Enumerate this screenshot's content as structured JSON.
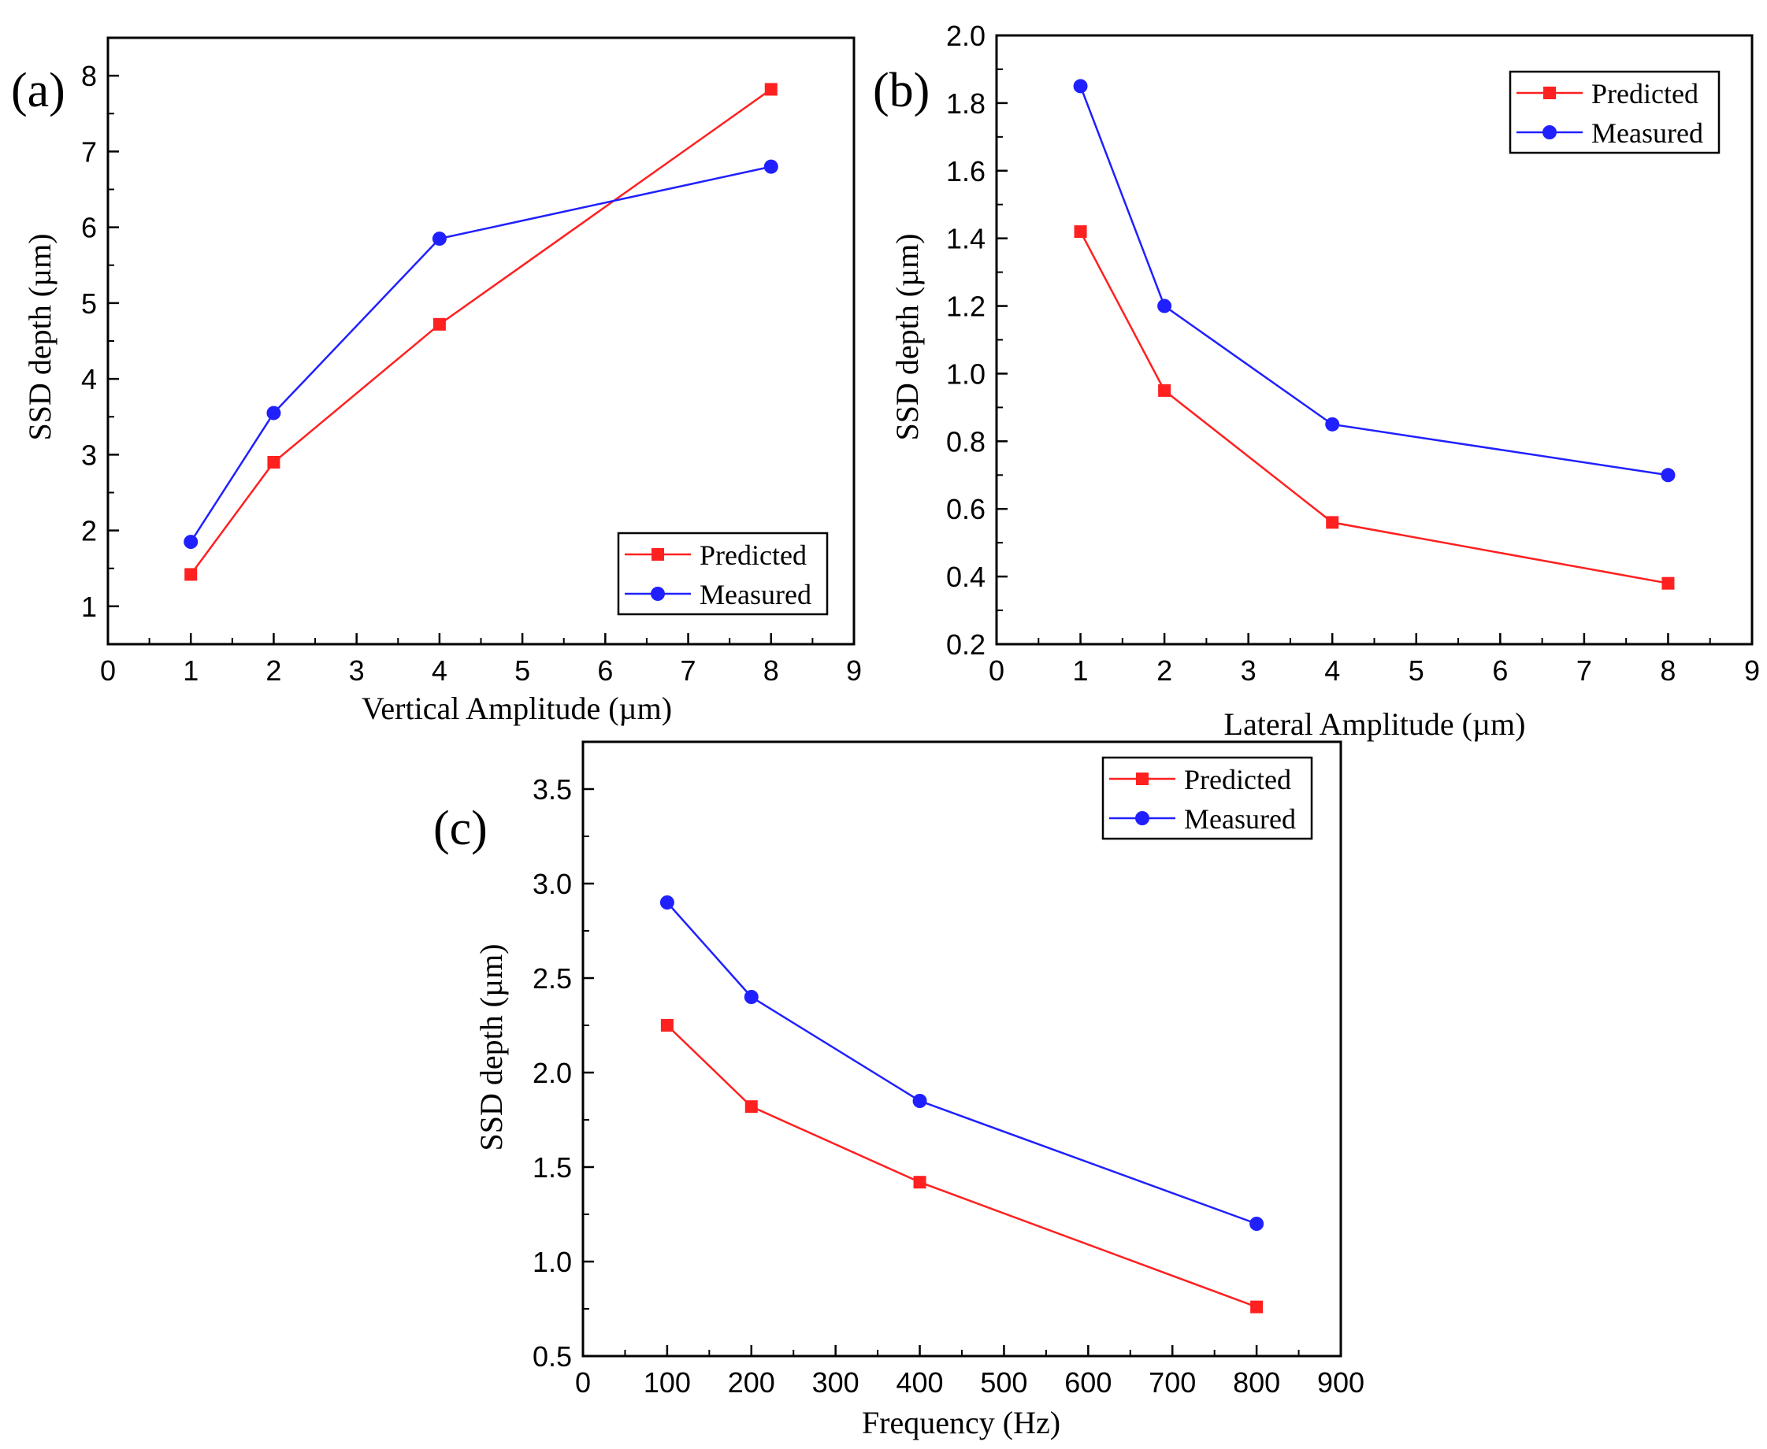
{
  "colors": {
    "predicted": "#ff2020",
    "measured": "#2020ff",
    "axis": "#000000"
  },
  "chart_data": [
    {
      "panel": "a",
      "panel_label": "(a)",
      "type": "line",
      "xlabel": "Vertical Amplitude (µm)",
      "ylabel": "SSD depth (µm)",
      "xlim": [
        0,
        9
      ],
      "ylim": [
        0.5,
        8.5
      ],
      "xticks": [
        0,
        1,
        2,
        3,
        4,
        5,
        6,
        7,
        8,
        9
      ],
      "xtick_labels": [
        "0",
        "1",
        "2",
        "3",
        "4",
        "5",
        "6",
        "7",
        "8",
        "9"
      ],
      "yticks": [
        1,
        2,
        3,
        4,
        5,
        6,
        7,
        8
      ],
      "ytick_labels": [
        "1",
        "2",
        "3",
        "4",
        "5",
        "6",
        "7",
        "8"
      ],
      "legend_position": "bottom-right",
      "series": [
        {
          "name": "Predicted",
          "marker": "square",
          "x": [
            1,
            2,
            4,
            8
          ],
          "values": [
            1.42,
            2.9,
            4.72,
            7.82
          ]
        },
        {
          "name": "Measured",
          "marker": "circle",
          "x": [
            1,
            2,
            4,
            8
          ],
          "values": [
            1.85,
            3.55,
            5.85,
            6.8
          ]
        }
      ]
    },
    {
      "panel": "b",
      "panel_label": "(b)",
      "type": "line",
      "xlabel": "Lateral Amplitude (µm)",
      "ylabel": "SSD depth (µm)",
      "xlim": [
        0,
        9
      ],
      "ylim": [
        0.2,
        2.0
      ],
      "xticks": [
        0,
        1,
        2,
        3,
        4,
        5,
        6,
        7,
        8,
        9
      ],
      "xtick_labels": [
        "0",
        "1",
        "2",
        "3",
        "4",
        "5",
        "6",
        "7",
        "8",
        "9"
      ],
      "yticks": [
        0.2,
        0.4,
        0.6,
        0.8,
        1.0,
        1.2,
        1.4,
        1.6,
        1.8,
        2.0
      ],
      "ytick_labels": [
        "0.2",
        "0.4",
        "0.6",
        "0.8",
        "1.0",
        "1.2",
        "1.4",
        "1.6",
        "1.8",
        "2.0"
      ],
      "legend_position": "top-right",
      "series": [
        {
          "name": "Predicted",
          "marker": "square",
          "x": [
            1,
            2,
            4,
            8
          ],
          "values": [
            1.42,
            0.95,
            0.56,
            0.38
          ]
        },
        {
          "name": "Measured",
          "marker": "circle",
          "x": [
            1,
            2,
            4,
            8
          ],
          "values": [
            1.85,
            1.2,
            0.85,
            0.7
          ]
        }
      ]
    },
    {
      "panel": "c",
      "panel_label": "(c)",
      "type": "line",
      "xlabel": "Frequency (Hz)",
      "ylabel": "SSD depth (µm)",
      "xlim": [
        0,
        900
      ],
      "ylim": [
        0.5,
        3.75
      ],
      "xticks": [
        0,
        100,
        200,
        300,
        400,
        500,
        600,
        700,
        800,
        900
      ],
      "xtick_labels": [
        "0",
        "100",
        "200",
        "300",
        "400",
        "500",
        "600",
        "700",
        "800",
        "900"
      ],
      "yticks": [
        0.5,
        1.0,
        1.5,
        2.0,
        2.5,
        3.0,
        3.5
      ],
      "ytick_labels": [
        "0.5",
        "1.0",
        "1.5",
        "2.0",
        "2.5",
        "3.0",
        "3.5"
      ],
      "legend_position": "top-right",
      "series": [
        {
          "name": "Predicted",
          "marker": "square",
          "x": [
            100,
            200,
            400,
            800
          ],
          "values": [
            2.25,
            1.82,
            1.42,
            0.76
          ]
        },
        {
          "name": "Measured",
          "marker": "circle",
          "x": [
            100,
            200,
            400,
            800
          ],
          "values": [
            2.9,
            2.4,
            1.85,
            1.2
          ]
        }
      ]
    }
  ]
}
